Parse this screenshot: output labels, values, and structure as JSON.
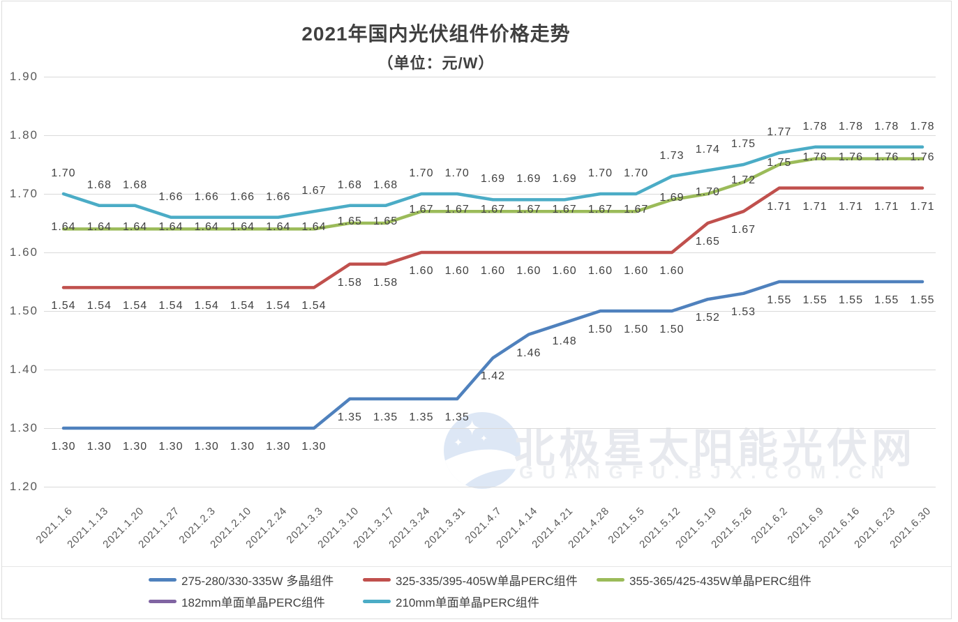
{
  "watermark": {
    "text": "北极星太阳能光伏网",
    "url": "GUANGFU.BJX.COM.CN",
    "logo_icon": "moon-and-stars",
    "color": "#e7e9ee"
  },
  "chart_data": {
    "type": "line",
    "title": "2021年国内光伏组件价格走势",
    "subtitle": "（单位：元/W）",
    "ylabel": "",
    "xlabel": "",
    "ylim": [
      1.2,
      1.9
    ],
    "y_ticks": [
      1.9,
      1.8,
      1.7,
      1.6,
      1.5,
      1.4,
      1.3,
      1.2
    ],
    "grid": true,
    "legend_position": "bottom",
    "data_labels": true,
    "x": [
      "2021.1.6",
      "2021.1.13",
      "2021.1.20",
      "2021.1.27",
      "2021.2.3",
      "2021.2.10",
      "2021.2.24",
      "2021.3.3",
      "2021.3.10",
      "2021.3.17",
      "2021.3.24",
      "2021.3.31",
      "2021.4.7",
      "2021.4.14",
      "2021.4.21",
      "2021.4.28",
      "2021.5.5",
      "2021.5.12",
      "2021.5.19",
      "2021.5.26",
      "2021.6.2",
      "2021.6.9",
      "2021.6.16",
      "2021.6.23",
      "2021.6.30"
    ],
    "series": [
      {
        "name": "275-280/330-335W 多晶组件",
        "color": "#4F81BD",
        "values": [
          1.3,
          1.3,
          1.3,
          1.3,
          1.3,
          1.3,
          1.3,
          1.3,
          1.35,
          1.35,
          1.35,
          1.35,
          1.42,
          1.46,
          1.48,
          1.5,
          1.5,
          1.5,
          1.52,
          1.53,
          1.55,
          1.55,
          1.55,
          1.55,
          1.55
        ]
      },
      {
        "name": "325-335/395-405W单晶PERC组件",
        "color": "#C0504D",
        "values": [
          1.54,
          1.54,
          1.54,
          1.54,
          1.54,
          1.54,
          1.54,
          1.54,
          1.58,
          1.58,
          1.6,
          1.6,
          1.6,
          1.6,
          1.6,
          1.6,
          1.6,
          1.6,
          1.65,
          1.67,
          1.71,
          1.71,
          1.71,
          1.71,
          1.71
        ]
      },
      {
        "name": "355-365/425-435W单晶PERC组件",
        "color": "#9BBB59",
        "values": [
          1.64,
          1.64,
          1.64,
          1.64,
          1.64,
          1.64,
          1.64,
          1.64,
          1.65,
          1.65,
          1.67,
          1.67,
          1.67,
          1.67,
          1.67,
          1.67,
          1.67,
          1.69,
          1.7,
          1.72,
          1.75,
          1.76,
          1.76,
          1.76,
          1.76
        ]
      },
      {
        "name": "182mm单面单晶PERC组件",
        "color": "#8064A2",
        "values": []
      },
      {
        "name": "210mm单面单晶PERC组件",
        "color": "#4BACC6",
        "values": [
          1.7,
          1.68,
          1.68,
          1.66,
          1.66,
          1.66,
          1.66,
          1.67,
          1.68,
          1.68,
          1.7,
          1.7,
          1.69,
          1.69,
          1.69,
          1.7,
          1.7,
          1.73,
          1.74,
          1.75,
          1.77,
          1.78,
          1.78,
          1.78,
          1.78
        ]
      }
    ]
  }
}
